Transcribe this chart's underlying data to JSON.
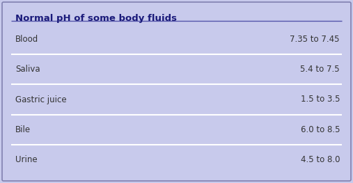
{
  "title": "Normal pH of some body fluids",
  "rows": [
    {
      "fluid": "Blood",
      "range": "7.35 to 7.45"
    },
    {
      "fluid": "Saliva",
      "range": "5.4 to 7.5"
    },
    {
      "fluid": "Gastric juice",
      "range": "1.5 to 3.5"
    },
    {
      "fluid": "Bile",
      "range": "6.0 to 8.5"
    },
    {
      "fluid": "Urine",
      "range": "4.5 to 8.0"
    }
  ],
  "bg_color": "#c8caec",
  "title_color": "#1a1a7a",
  "text_color": "#333333",
  "divider_color": "#ffffff",
  "title_fontsize": 9.5,
  "row_fontsize": 8.5,
  "border_color": "#8080b0",
  "title_line_color": "#5555aa"
}
